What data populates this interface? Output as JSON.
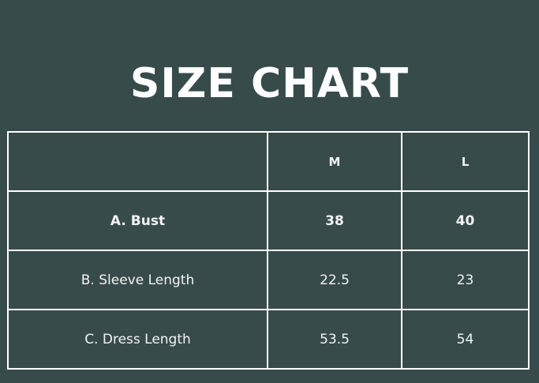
{
  "title": "SIZE CHART",
  "colors": {
    "background": "#384b4b",
    "lines": "#ffffff"
  },
  "table": {
    "headers": [
      "",
      "M",
      "L"
    ],
    "rows": [
      {
        "label": "A. Bust",
        "values": [
          "38",
          "40"
        ],
        "bold": true
      },
      {
        "label": "B. Sleeve Length",
        "values": [
          "22.5",
          "23"
        ],
        "bold": false
      },
      {
        "label": "C. Dress Length",
        "values": [
          "53.5",
          "54"
        ],
        "bold": false
      }
    ]
  }
}
